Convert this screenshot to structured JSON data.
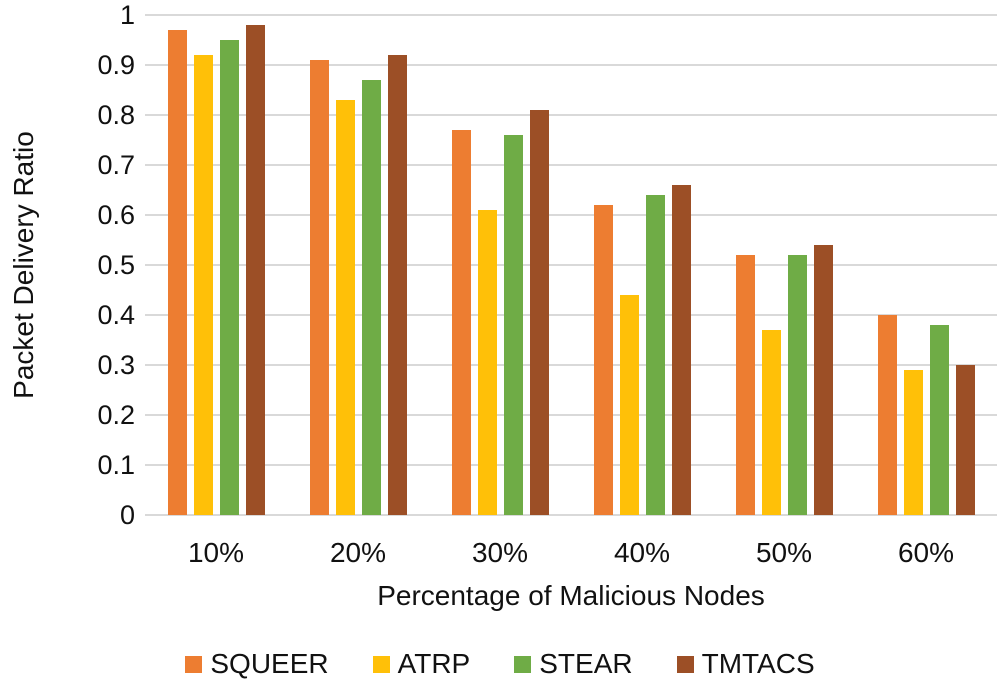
{
  "chart_data": {
    "type": "bar",
    "title": "",
    "xlabel": "Percentage of Malicious Nodes",
    "ylabel": "Packet Delivery Ratio",
    "categories": [
      "10%",
      "20%",
      "30%",
      "40%",
      "50%",
      "60%"
    ],
    "series": [
      {
        "name": "SQUEER",
        "color": "#ED7D31",
        "values": [
          0.97,
          0.91,
          0.77,
          0.62,
          0.52,
          0.4
        ]
      },
      {
        "name": "ATRP",
        "color": "#FFC008",
        "values": [
          0.92,
          0.83,
          0.61,
          0.44,
          0.37,
          0.29
        ]
      },
      {
        "name": "STEAR",
        "color": "#6FAC46",
        "values": [
          0.95,
          0.87,
          0.76,
          0.64,
          0.52,
          0.38
        ]
      },
      {
        "name": "TMTACS",
        "color": "#9C4F26",
        "values": [
          0.98,
          0.92,
          0.81,
          0.66,
          0.54,
          0.3
        ]
      }
    ],
    "y_ticks": [
      "1",
      "0.9",
      "0.8",
      "0.7",
      "0.6",
      "0.5",
      "0.4",
      "0.3",
      "0.2",
      "0.1",
      "0"
    ],
    "ylim": [
      0,
      1
    ],
    "grid": true,
    "gridline_color": "#D9D9D9",
    "background_color": "#ffffff",
    "legend_position": "bottom"
  }
}
